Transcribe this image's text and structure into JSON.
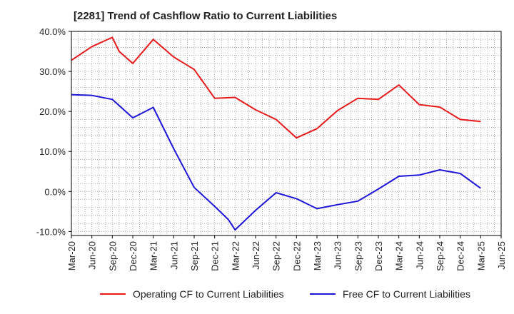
{
  "chart_data": {
    "type": "line",
    "title": "[2281]  Trend of Cashflow Ratio to Current Liabilities",
    "xlabel": "",
    "ylabel": "",
    "x": [
      "Mar-20",
      "Apr-20",
      "May-20",
      "Jun-20",
      "Jul-20",
      "Aug-20",
      "Sep-20",
      "Oct-20",
      "Nov-20",
      "Dec-20",
      "Jan-21",
      "Feb-21",
      "Mar-21",
      "Apr-21",
      "May-21",
      "Jun-21",
      "Jul-21",
      "Aug-21",
      "Sep-21",
      "Oct-21",
      "Nov-21",
      "Dec-21",
      "Jan-22",
      "Feb-22",
      "Mar-22",
      "Apr-22",
      "May-22",
      "Jun-22",
      "Jul-22",
      "Aug-22",
      "Sep-22",
      "Oct-22",
      "Nov-22",
      "Dec-22",
      "Jan-23",
      "Feb-23",
      "Mar-23",
      "Apr-23",
      "May-23",
      "Jun-23",
      "Jul-23",
      "Aug-23",
      "Sep-23",
      "Oct-23",
      "Nov-23",
      "Dec-23",
      "Jan-24",
      "Feb-24",
      "Mar-24",
      "Apr-24",
      "May-24",
      "Jun-24",
      "Jul-24",
      "Aug-24",
      "Sep-24",
      "Oct-24",
      "Nov-24",
      "Dec-24",
      "Jan-25",
      "Feb-25",
      "Mar-25",
      "Apr-25",
      "May-25",
      "Jun-25"
    ],
    "tick_labels": [
      "Mar-20",
      "Jun-20",
      "Sep-20",
      "Dec-20",
      "Mar-21",
      "Jun-21",
      "Sep-21",
      "Dec-21",
      "Mar-22",
      "Jun-22",
      "Sep-22",
      "Dec-22",
      "Mar-23",
      "Jun-23",
      "Sep-23",
      "Dec-23",
      "Mar-24",
      "Jun-24",
      "Sep-24",
      "Dec-24",
      "Mar-25",
      "Jun-25"
    ],
    "y_ticks": [
      "40.0%",
      "30.0%",
      "20.0%",
      "10.0%",
      "0.0%",
      "-10.0%"
    ],
    "ylim": [
      -11,
      40
    ],
    "grid": true,
    "legend_position": "bottom",
    "series": [
      {
        "name": "Operating CF to Current Liabilities",
        "color": "#e8191a",
        "points": [
          [
            "Mar-20",
            32.8
          ],
          [
            "Jun-20",
            36.2
          ],
          [
            "Sep-20",
            38.5
          ],
          [
            "Oct-20",
            35.0
          ],
          [
            "Dec-20",
            32.0
          ],
          [
            "Mar-21",
            38.0
          ],
          [
            "Jun-21",
            33.6
          ],
          [
            "Sep-21",
            30.5
          ],
          [
            "Dec-21",
            23.3
          ],
          [
            "Mar-22",
            23.5
          ],
          [
            "Jun-22",
            20.4
          ],
          [
            "Sep-22",
            18.0
          ],
          [
            "Dec-22",
            13.4
          ],
          [
            "Mar-23",
            15.7
          ],
          [
            "Jun-23",
            20.2
          ],
          [
            "Sep-23",
            23.3
          ],
          [
            "Dec-23",
            23.0
          ],
          [
            "Mar-24",
            26.6
          ],
          [
            "Jun-24",
            21.7
          ],
          [
            "Sep-24",
            21.1
          ],
          [
            "Dec-24",
            18.0
          ],
          [
            "Mar-25",
            17.5
          ]
        ]
      },
      {
        "name": "Free CF to Current Liabilities",
        "color": "#1c15d8",
        "points": [
          [
            "Mar-20",
            24.2
          ],
          [
            "Jun-20",
            24.0
          ],
          [
            "Sep-20",
            23.0
          ],
          [
            "Dec-20",
            18.4
          ],
          [
            "Mar-21",
            21.0
          ],
          [
            "Jun-21",
            10.7
          ],
          [
            "Sep-21",
            1.0
          ],
          [
            "Dec-21",
            -3.7
          ],
          [
            "Feb-22",
            -7.0
          ],
          [
            "Mar-22",
            -9.6
          ],
          [
            "Jun-22",
            -4.7
          ],
          [
            "Sep-22",
            -0.3
          ],
          [
            "Dec-22",
            -1.8
          ],
          [
            "Mar-23",
            -4.3
          ],
          [
            "Jun-23",
            -3.3
          ],
          [
            "Sep-23",
            -2.4
          ],
          [
            "Dec-23",
            0.6
          ],
          [
            "Mar-24",
            3.8
          ],
          [
            "Jun-24",
            4.1
          ],
          [
            "Sep-24",
            5.4
          ],
          [
            "Dec-24",
            4.5
          ],
          [
            "Mar-25",
            0.8
          ]
        ]
      }
    ]
  },
  "colors": {
    "plot_border": "#000000",
    "grid": "#9a9a9a",
    "axis_text": "#222222"
  }
}
